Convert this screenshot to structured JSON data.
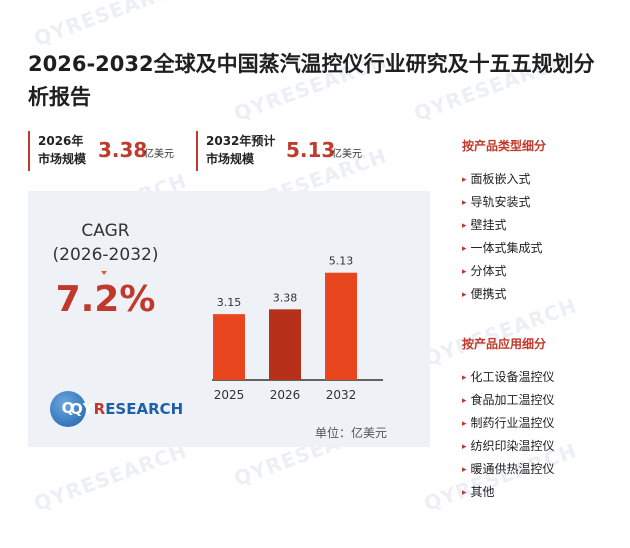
{
  "title": "2026-2032全球及中国蒸汽温控仪行业研究及十五五规划分析报告",
  "kpis": [
    {
      "label_line1": "2026年",
      "label_line2": "市场规模",
      "value": "3.38",
      "unit": "亿美元"
    },
    {
      "label_line1": "2032年预计",
      "label_line2": "市场规模",
      "value": "5.13",
      "unit": "亿美元"
    }
  ],
  "cagr": {
    "label_line1": "CAGR",
    "label_line2": "(2026-2032)",
    "value": "7.2%"
  },
  "logo": {
    "text_main": "QY",
    "text_r": "R",
    "text_rest": "ESEARCH",
    "circle_letter": "Q"
  },
  "unit_note": "单位：亿美元",
  "watermark": "QYRESEARCH",
  "chart_data": {
    "type": "bar",
    "categories": [
      "2025",
      "2026",
      "2032"
    ],
    "values": [
      3.15,
      3.38,
      5.13
    ],
    "value_labels": [
      "3.15",
      "3.38",
      "5.13"
    ],
    "colors": [
      "#e8461e",
      "#b7301a",
      "#e8461e"
    ],
    "title": "",
    "xlabel": "",
    "ylabel": "",
    "ylim": [
      0,
      5.5
    ],
    "grid": false,
    "legend": "none"
  },
  "product_types": {
    "heading": "按产品类型细分",
    "items": [
      "面板嵌入式",
      "导轨安装式",
      "壁挂式",
      "一体式集成式",
      "分体式",
      "便携式"
    ]
  },
  "applications": {
    "heading": "按产品应用细分",
    "items": [
      "化工设备温控仪",
      "食品加工温控仪",
      "制药行业温控仪",
      "纺织印染温控仪",
      "暖通供热温控仪",
      "其他"
    ]
  }
}
